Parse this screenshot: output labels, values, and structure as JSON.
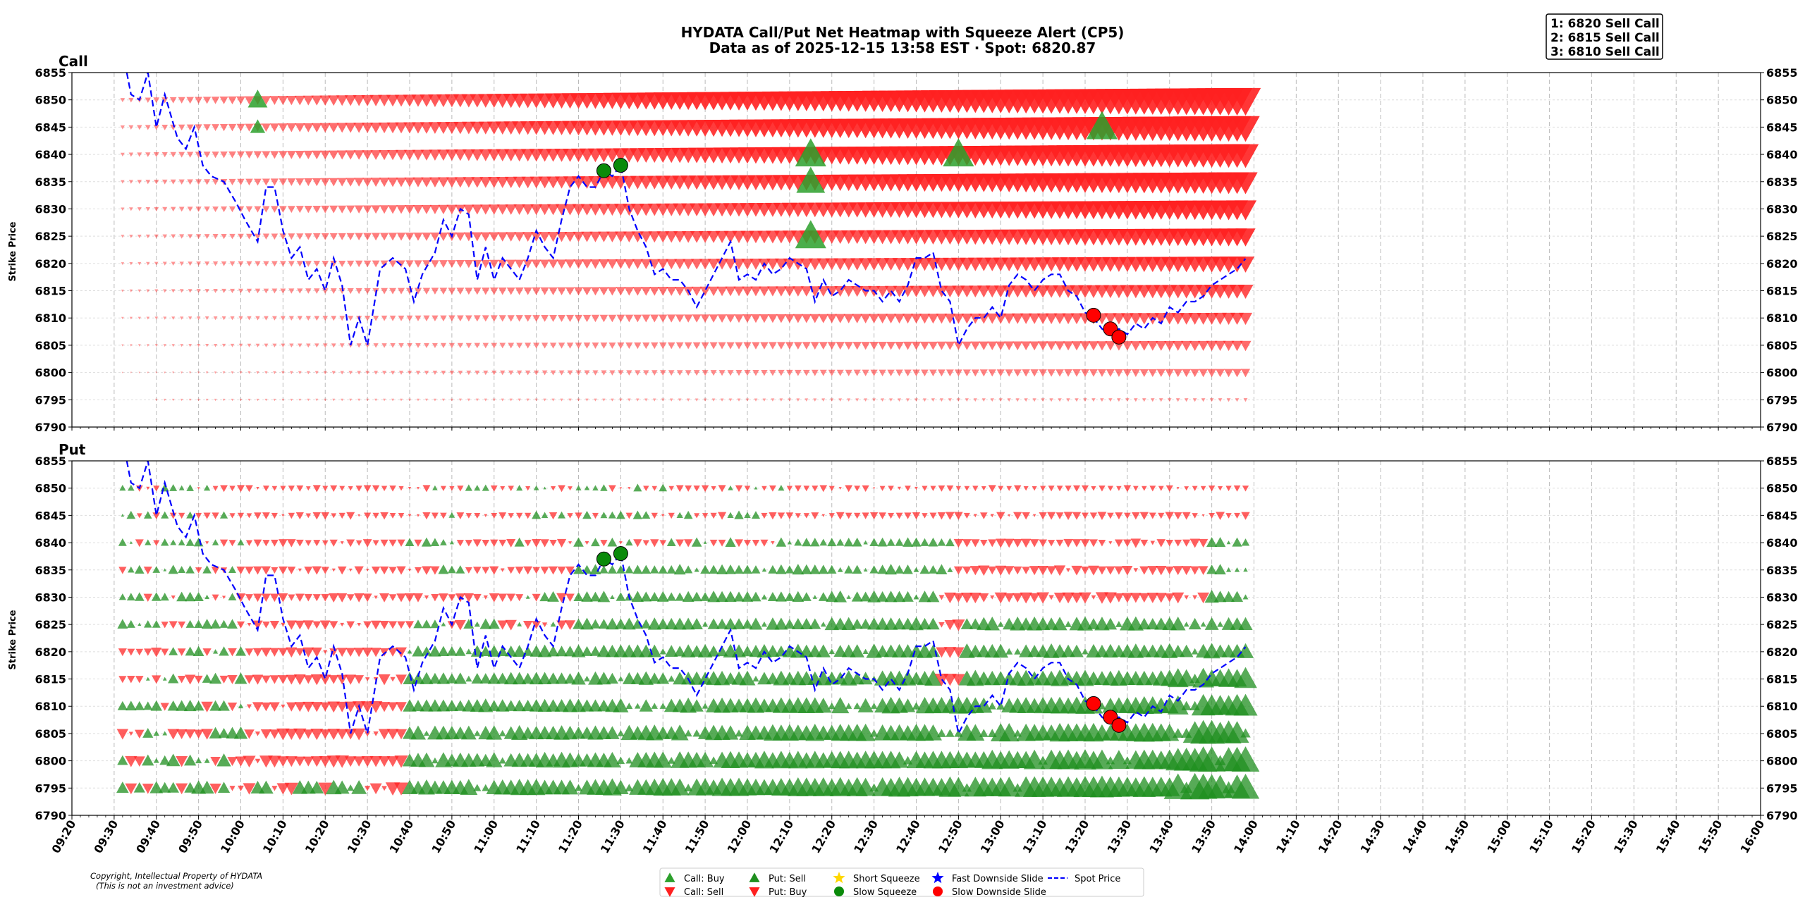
{
  "chart_data": {
    "type": "scatter",
    "title_line1": "HYDATA Call/Put Net Heatmap with Squeeze Alert (CP5)",
    "title_line2": "Data as of 2025-12-15 13:58 EST · Spot: 6820.87",
    "alerts": [
      "1: 6820 Sell Call",
      "2: 6815 Sell Call",
      "3: 6810 Sell Call"
    ],
    "copyright_line1": "Copyright, Intellectual Property of HYDATA",
    "copyright_line2": "(This is not an investment advice)",
    "ylabel": "Strike Price",
    "ylim": [
      6790,
      6855
    ],
    "yticks": [
      6790,
      6795,
      6800,
      6805,
      6810,
      6815,
      6820,
      6825,
      6830,
      6835,
      6840,
      6845,
      6850,
      6855
    ],
    "xlim_minutes": [
      560,
      960
    ],
    "xticks": [
      "09:20",
      "09:30",
      "09:40",
      "09:50",
      "10:00",
      "10:10",
      "10:20",
      "10:30",
      "10:40",
      "10:50",
      "11:00",
      "11:10",
      "11:20",
      "11:30",
      "11:40",
      "11:50",
      "12:00",
      "12:10",
      "12:20",
      "12:30",
      "12:40",
      "12:50",
      "13:00",
      "13:10",
      "13:20",
      "13:30",
      "13:40",
      "13:50",
      "14:00",
      "14:10",
      "14:20",
      "14:30",
      "14:40",
      "14:50",
      "15:00",
      "15:10",
      "15:20",
      "15:30",
      "15:40",
      "15:50",
      "16:00"
    ],
    "panels": [
      {
        "name": "Call",
        "dominant": "sell",
        "strikes": [
          6850,
          6845,
          6840,
          6835,
          6830,
          6825,
          6820,
          6815,
          6810,
          6805,
          6800,
          6795
        ],
        "buy_markers": [
          {
            "t": "10:04",
            "strike": 6850,
            "size": 1
          },
          {
            "t": "10:04",
            "strike": 6845,
            "size": 0.6
          },
          {
            "t": "12:15",
            "strike": 6840,
            "size": 2
          },
          {
            "t": "12:15",
            "strike": 6835,
            "size": 1.8
          },
          {
            "t": "12:15",
            "strike": 6825,
            "size": 2
          },
          {
            "t": "12:50",
            "strike": 6840,
            "size": 2
          },
          {
            "t": "13:24",
            "strike": 6845,
            "size": 2
          }
        ]
      },
      {
        "name": "Put",
        "dominant": "mixed",
        "strikes": [
          6850,
          6845,
          6840,
          6835,
          6830,
          6825,
          6820,
          6815,
          6810,
          6805,
          6800,
          6795
        ]
      }
    ],
    "spot_price": {
      "name": "Spot Price",
      "points": [
        [
          "09:33",
          6856
        ],
        [
          "09:34",
          6851
        ],
        [
          "09:36",
          6850
        ],
        [
          "09:38",
          6856
        ],
        [
          "09:40",
          6845
        ],
        [
          "09:42",
          6851
        ],
        [
          "09:45",
          6843
        ],
        [
          "09:47",
          6841
        ],
        [
          "09:49",
          6845
        ],
        [
          "09:51",
          6838
        ],
        [
          "09:53",
          6836
        ],
        [
          "09:56",
          6835
        ],
        [
          "09:59",
          6831
        ],
        [
          "10:01",
          6828
        ],
        [
          "10:04",
          6824
        ],
        [
          "10:06",
          6834
        ],
        [
          "10:08",
          6834
        ],
        [
          "10:10",
          6826
        ],
        [
          "10:12",
          6821
        ],
        [
          "10:14",
          6823
        ],
        [
          "10:16",
          6817
        ],
        [
          "10:18",
          6819
        ],
        [
          "10:20",
          6815
        ],
        [
          "10:22",
          6821
        ],
        [
          "10:24",
          6816
        ],
        [
          "10:26",
          6805
        ],
        [
          "10:28",
          6810
        ],
        [
          "10:30",
          6805
        ],
        [
          "10:33",
          6819
        ],
        [
          "10:36",
          6821
        ],
        [
          "10:39",
          6819
        ],
        [
          "10:41",
          6813
        ],
        [
          "10:43",
          6818
        ],
        [
          "10:46",
          6822
        ],
        [
          "10:48",
          6828
        ],
        [
          "10:50",
          6825
        ],
        [
          "10:52",
          6830
        ],
        [
          "10:54",
          6829
        ],
        [
          "10:56",
          6817
        ],
        [
          "10:58",
          6823
        ],
        [
          "11:00",
          6817
        ],
        [
          "11:02",
          6821
        ],
        [
          "11:04",
          6819
        ],
        [
          "11:06",
          6817
        ],
        [
          "11:08",
          6821
        ],
        [
          "11:10",
          6826
        ],
        [
          "11:12",
          6823
        ],
        [
          "11:14",
          6821
        ],
        [
          "11:16",
          6828
        ],
        [
          "11:18",
          6834
        ],
        [
          "11:20",
          6836
        ],
        [
          "11:22",
          6834
        ],
        [
          "11:24",
          6834
        ],
        [
          "11:26",
          6837
        ],
        [
          "11:28",
          6836
        ],
        [
          "11:30",
          6838
        ],
        [
          "11:32",
          6830
        ],
        [
          "11:34",
          6826
        ],
        [
          "11:36",
          6823
        ],
        [
          "11:38",
          6818
        ],
        [
          "11:40",
          6819
        ],
        [
          "11:42",
          6817
        ],
        [
          "11:44",
          6817
        ],
        [
          "11:46",
          6815
        ],
        [
          "11:48",
          6812
        ],
        [
          "11:50",
          6815
        ],
        [
          "11:52",
          6818
        ],
        [
          "11:54",
          6821
        ],
        [
          "11:56",
          6824
        ],
        [
          "11:58",
          6817
        ],
        [
          "12:00",
          6818
        ],
        [
          "12:02",
          6817
        ],
        [
          "12:04",
          6820
        ],
        [
          "12:06",
          6818
        ],
        [
          "12:08",
          6819
        ],
        [
          "12:10",
          6821
        ],
        [
          "12:12",
          6820
        ],
        [
          "12:14",
          6819
        ],
        [
          "12:16",
          6813
        ],
        [
          "12:18",
          6817
        ],
        [
          "12:20",
          6814
        ],
        [
          "12:22",
          6815
        ],
        [
          "12:24",
          6817
        ],
        [
          "12:26",
          6816
        ],
        [
          "12:28",
          6815
        ],
        [
          "12:30",
          6815
        ],
        [
          "12:32",
          6813
        ],
        [
          "12:34",
          6815
        ],
        [
          "12:36",
          6813
        ],
        [
          "12:38",
          6816
        ],
        [
          "12:40",
          6821
        ],
        [
          "12:42",
          6821
        ],
        [
          "12:44",
          6822
        ],
        [
          "12:46",
          6815
        ],
        [
          "12:48",
          6813
        ],
        [
          "12:50",
          6805
        ],
        [
          "12:52",
          6808
        ],
        [
          "12:54",
          6810
        ],
        [
          "12:56",
          6810
        ],
        [
          "12:58",
          6812
        ],
        [
          "13:00",
          6810
        ],
        [
          "13:02",
          6816
        ],
        [
          "13:04",
          6818
        ],
        [
          "13:06",
          6817
        ],
        [
          "13:08",
          6815
        ],
        [
          "13:10",
          6817
        ],
        [
          "13:12",
          6818
        ],
        [
          "13:14",
          6818
        ],
        [
          "13:16",
          6815
        ],
        [
          "13:18",
          6814
        ],
        [
          "13:20",
          6811
        ],
        [
          "13:22",
          6810
        ],
        [
          "13:24",
          6808
        ],
        [
          "13:26",
          6807
        ],
        [
          "13:28",
          6808
        ],
        [
          "13:30",
          6807
        ],
        [
          "13:32",
          6809
        ],
        [
          "13:34",
          6808
        ],
        [
          "13:36",
          6810
        ],
        [
          "13:38",
          6809
        ],
        [
          "13:40",
          6812
        ],
        [
          "13:42",
          6811
        ],
        [
          "13:44",
          6813
        ],
        [
          "13:46",
          6813
        ],
        [
          "13:48",
          6814
        ],
        [
          "13:50",
          6816
        ],
        [
          "13:52",
          6817
        ],
        [
          "13:54",
          6818
        ],
        [
          "13:56",
          6819
        ],
        [
          "13:58",
          6820.87
        ]
      ]
    },
    "slow_squeeze": [
      [
        "11:26",
        6837
      ],
      [
        "11:30",
        6838
      ]
    ],
    "slow_downside_slide": [
      [
        "13:22",
        6810.5
      ],
      [
        "13:26",
        6808
      ],
      [
        "13:28",
        6806.5
      ]
    ],
    "legend": [
      {
        "label": "Call: Buy",
        "marker": "triangle-up",
        "color": "#2ca02c"
      },
      {
        "label": "Call: Sell",
        "marker": "triangle-down",
        "color": "#ff2020"
      },
      {
        "label": "Put: Sell",
        "marker": "triangle-up",
        "color": "#1f8f1f"
      },
      {
        "label": "Put: Buy",
        "marker": "triangle-down",
        "color": "#ff2020"
      },
      {
        "label": "Short Squeeze",
        "marker": "star",
        "color": "#ffd700"
      },
      {
        "label": "Slow Squeeze",
        "marker": "circle",
        "color": "#0a8a0a"
      },
      {
        "label": "Fast Downside Slide",
        "marker": "star",
        "color": "#0000ff"
      },
      {
        "label": "Slow Downside Slide",
        "marker": "circle",
        "color": "#ff0000"
      },
      {
        "label": "Spot Price",
        "marker": "dashed-line",
        "color": "#0000ff"
      }
    ],
    "colors": {
      "sell": "#ff2020",
      "buy": "#1f8f1f",
      "spot": "#0000ff",
      "grid": "#bbbbbb"
    }
  }
}
